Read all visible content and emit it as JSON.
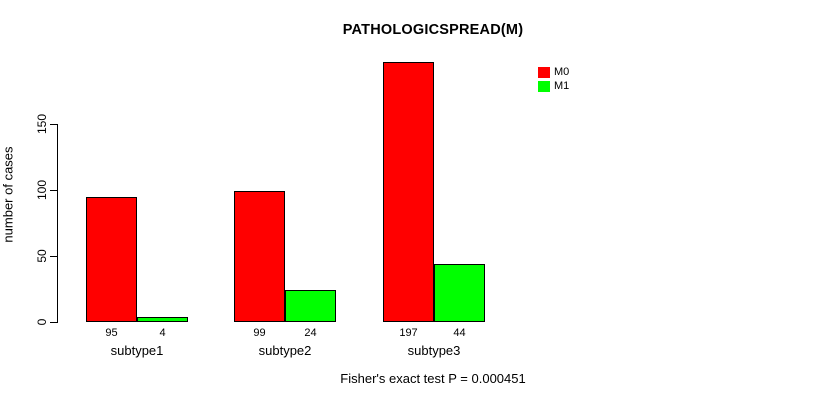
{
  "title": "PATHOLOGICSPREAD(M)",
  "footer": "Fisher's exact test P = 0.000451",
  "chart_data": {
    "type": "bar",
    "title": "PATHOLOGICSPREAD(M)",
    "categories": [
      "subtype1",
      "subtype2",
      "subtype3"
    ],
    "series": [
      {
        "name": "M0",
        "color": "#FF0000",
        "values": [
          95,
          99,
          197
        ]
      },
      {
        "name": "M1",
        "color": "#00FF00",
        "values": [
          4,
          24,
          44
        ]
      }
    ],
    "xlabel": "",
    "ylabel": "number of cases",
    "yticks": [
      0,
      50,
      100,
      150
    ],
    "ylim": [
      0,
      150
    ],
    "grid": false,
    "legend_position": "top-right",
    "bar_value_labels": true,
    "annotation": "Fisher's exact test P = 0.000451"
  },
  "legend": {
    "items": [
      {
        "label": "M0",
        "color": "#FF0000"
      },
      {
        "label": "M1",
        "color": "#00FF00"
      }
    ]
  }
}
